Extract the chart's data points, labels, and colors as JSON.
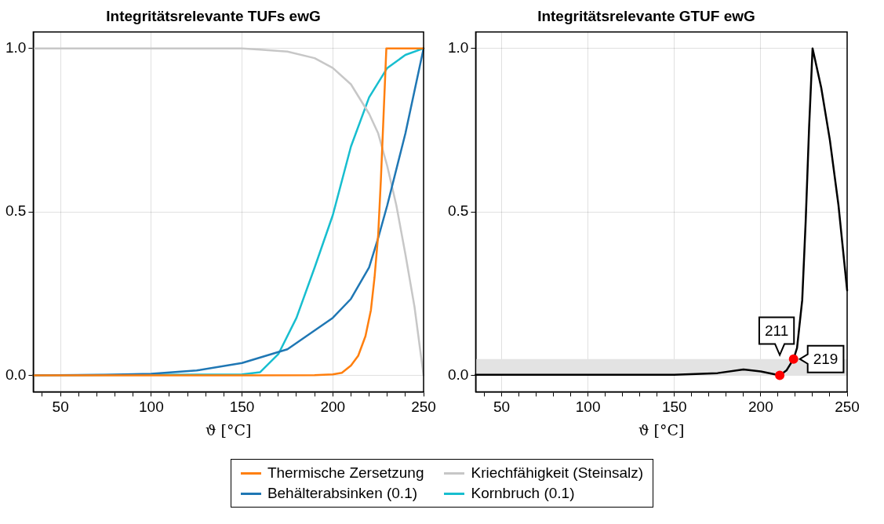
{
  "chart_data": [
    {
      "type": "line",
      "title": "Integritätsrelevante TUFs ewG",
      "xlabel": "ϑ [°C]",
      "xlim": [
        35,
        250
      ],
      "ylim": [
        -0.05,
        1.05
      ],
      "xticks": [
        {
          "value": 40,
          "label": null
        },
        50,
        {
          "value": 60,
          "label": null
        },
        {
          "value": 70,
          "label": null
        },
        {
          "value": 80,
          "label": null
        },
        {
          "value": 90,
          "label": null
        },
        100,
        {
          "value": 110,
          "label": null
        },
        {
          "value": 120,
          "label": null
        },
        {
          "value": 130,
          "label": null
        },
        {
          "value": 140,
          "label": null
        },
        150,
        {
          "value": 160,
          "label": null
        },
        {
          "value": 170,
          "label": null
        },
        {
          "value": 180,
          "label": null
        },
        {
          "value": 190,
          "label": null
        },
        200,
        {
          "value": 210,
          "label": null
        },
        {
          "value": 220,
          "label": null
        },
        {
          "value": 230,
          "label": null
        },
        {
          "value": 240,
          "label": null
        },
        250
      ],
      "yticks": [
        {
          "value": 0,
          "label": "0.0"
        },
        {
          "value": 0.5,
          "label": "0.5"
        },
        {
          "value": 1,
          "label": "1.0"
        }
      ],
      "grid": true,
      "legend": "bottom",
      "marker": "none",
      "series": [
        {
          "name": "Thermische Zersetzung",
          "color": "#ff7f0e",
          "x": [
            35,
            150,
            190,
            200,
            205,
            210,
            214,
            218,
            221,
            223,
            225,
            226.5,
            228,
            229.5,
            250
          ],
          "values": [
            0,
            0,
            0.001,
            0.003,
            0.008,
            0.03,
            0.06,
            0.12,
            0.2,
            0.3,
            0.43,
            0.6,
            0.8,
            1,
            1
          ]
        },
        {
          "name": "Behälterabsinken (0.1)",
          "color": "#1f77b4",
          "x": [
            35,
            75,
            100,
            125,
            150,
            175,
            200,
            210,
            220,
            225,
            230,
            240,
            250
          ],
          "values": [
            0,
            0.002,
            0.005,
            0.015,
            0.038,
            0.08,
            0.176,
            0.234,
            0.33,
            0.42,
            0.52,
            0.74,
            1
          ]
        },
        {
          "name": "Kriechfähigkeit (Steinsalz)",
          "color": "#c7c7c7",
          "x": [
            35,
            150,
            160,
            175,
            190,
            200,
            210,
            220,
            225,
            230,
            235,
            240,
            245,
            250
          ],
          "values": [
            1,
            1,
            0.996,
            0.99,
            0.97,
            0.94,
            0.89,
            0.8,
            0.74,
            0.64,
            0.52,
            0.37,
            0.21,
            0
          ]
        },
        {
          "name": "Kornbruch (0.1)",
          "color": "#17becf",
          "x": [
            35,
            150,
            160,
            170,
            180,
            190,
            200,
            210,
            220,
            230,
            240,
            250
          ],
          "values": [
            0,
            0.003,
            0.01,
            0.065,
            0.176,
            0.33,
            0.49,
            0.7,
            0.85,
            0.94,
            0.98,
            1
          ]
        }
      ]
    },
    {
      "type": "line",
      "title": "Integritätsrelevante GTUF ewG",
      "xlabel": "ϑ [°C]",
      "xlim": [
        35,
        250
      ],
      "ylim": [
        -0.05,
        1.05
      ],
      "xticks": [
        {
          "value": 40,
          "label": null
        },
        50,
        {
          "value": 60,
          "label": null
        },
        {
          "value": 70,
          "label": null
        },
        {
          "value": 80,
          "label": null
        },
        {
          "value": 90,
          "label": null
        },
        100,
        {
          "value": 110,
          "label": null
        },
        {
          "value": 120,
          "label": null
        },
        {
          "value": 130,
          "label": null
        },
        {
          "value": 140,
          "label": null
        },
        150,
        {
          "value": 160,
          "label": null
        },
        {
          "value": 170,
          "label": null
        },
        {
          "value": 180,
          "label": null
        },
        {
          "value": 190,
          "label": null
        },
        200,
        {
          "value": 210,
          "label": null
        },
        {
          "value": 220,
          "label": null
        },
        {
          "value": 230,
          "label": null
        },
        {
          "value": 240,
          "label": null
        },
        250
      ],
      "yticks": [
        {
          "value": 0,
          "label": "0.0"
        },
        {
          "value": 0.5,
          "label": "0.5"
        },
        {
          "value": 1,
          "label": "1.0"
        }
      ],
      "grid": true,
      "marker": "none",
      "bands": [
        {
          "axis": "y",
          "from": 0,
          "to": 0.05,
          "color": "#e3e3e3"
        }
      ],
      "annotations": [
        {
          "text": "211",
          "x": 211,
          "y": 0
        },
        {
          "text": "219",
          "x": 219,
          "y": 0.05
        }
      ],
      "series": [
        {
          "color": "#000000",
          "x": [
            35,
            100,
            150,
            175,
            190,
            200,
            211,
            215,
            219,
            221,
            224,
            226,
            228,
            230,
            235,
            240,
            245,
            250
          ],
          "values": [
            0.002,
            0.002,
            0.002,
            0.007,
            0.018,
            0.012,
            0,
            0.016,
            0.05,
            0.084,
            0.23,
            0.47,
            0.76,
            1,
            0.88,
            0.72,
            0.52,
            0.26
          ]
        },
        {
          "type": "scatter",
          "marker": "circle",
          "color": "#ff0000",
          "x": [
            211,
            219
          ],
          "values": [
            0,
            0.05
          ]
        }
      ]
    }
  ]
}
